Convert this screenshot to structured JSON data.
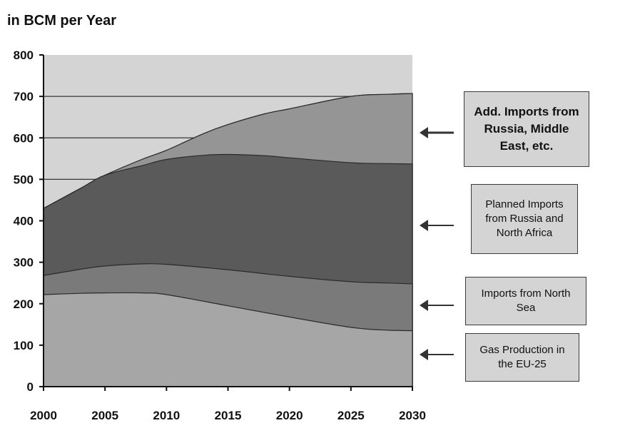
{
  "chart_data": {
    "type": "area",
    "title": "",
    "ylabel": "in BCM per Year",
    "xlabel": "",
    "x": [
      2000,
      2005,
      2010,
      2015,
      2020,
      2025,
      2030
    ],
    "x_ticks": [
      "2000",
      "2005",
      "2010",
      "2015",
      "2020",
      "2025",
      "2030"
    ],
    "y_ticks": [
      "0",
      "100",
      "200",
      "300",
      "400",
      "500",
      "600",
      "700",
      "800"
    ],
    "ylim": [
      0,
      800
    ],
    "xlim": [
      2000,
      2030
    ],
    "stacking": "cumulative",
    "grid": true,
    "series": [
      {
        "name": "Gas Production in the EU-25",
        "color": "#a6a6a6",
        "x": [
          2000,
          2003,
          2005,
          2008,
          2010,
          2015,
          2020,
          2025,
          2028,
          2030
        ],
        "y": [
          222,
          225,
          226,
          226,
          222,
          195,
          168,
          143,
          136,
          135
        ]
      },
      {
        "name": "Imports from North Sea",
        "color": "#7a7a7a",
        "x": [
          2000,
          2003,
          2005,
          2008,
          2010,
          2015,
          2020,
          2025,
          2028,
          2030
        ],
        "y": [
          268,
          283,
          291,
          296,
          295,
          282,
          266,
          253,
          250,
          248
        ]
      },
      {
        "name": "Planned Imports from Russia and North Africa",
        "color": "#5a5a5a",
        "x": [
          2000,
          2003,
          2005,
          2008,
          2010,
          2013,
          2015,
          2018,
          2020,
          2025,
          2028,
          2030
        ],
        "y": [
          430,
          478,
          510,
          533,
          548,
          558,
          560,
          557,
          552,
          540,
          538,
          537
        ]
      },
      {
        "name": "Add. Imports from Russia, Middle East, etc.",
        "color": "#959595",
        "x": [
          2000,
          2003,
          2005,
          2008,
          2010,
          2013,
          2015,
          2018,
          2020,
          2025,
          2028,
          2030
        ],
        "y": [
          430,
          478,
          510,
          548,
          570,
          610,
          632,
          658,
          670,
          700,
          705,
          707
        ]
      }
    ],
    "background_color": "#d4d4d4"
  },
  "callouts": [
    {
      "text": "Add. Imports from\nRussia, Middle\nEast, etc."
    },
    {
      "text": "Planned Imports\nfrom Russia and\nNorth Africa"
    },
    {
      "text": "Imports from North\nSea"
    },
    {
      "text": "Gas Production in\nthe EU-25"
    }
  ]
}
